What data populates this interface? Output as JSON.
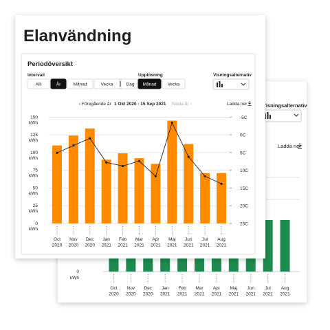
{
  "title": "Elanvändning",
  "panel": {
    "title": "Periodöversikt",
    "interval_label": "Intervall",
    "interval_options": [
      "Allt",
      "År",
      "Månad",
      "Vecka",
      "Dag"
    ],
    "interval_active": 1,
    "resolution_label": "Upplösning",
    "resolution_options": [
      "Månad",
      "Vecka"
    ],
    "resolution_active": 0,
    "view_label": "Visningsalternativ",
    "prev": "‹ Föregående år",
    "period": "1 Okt 2020 - 15 Sep 2021",
    "next": "Nästa år ›",
    "download": "Ladda ner"
  },
  "chart_data": {
    "type": "bar",
    "categories": [
      "Oct 2020",
      "Nov 2020",
      "Dec 2020",
      "Jan 2021",
      "Feb 2021",
      "Mar 2021",
      "Apr 2021",
      "Maj 2021",
      "Jun 2021",
      "Jul 2021",
      "Aug 2021"
    ],
    "series": [
      {
        "type": "bar",
        "color": "#ff8a00",
        "values": [
          110,
          124,
          134,
          90,
          99,
          92,
          84,
          145,
          112,
          71,
          71
        ]
      },
      {
        "type": "line",
        "axis": "y2",
        "color": "#222222",
        "values": [
          5.1,
          3,
          1,
          7.8,
          8.8,
          7.4,
          11.7,
          -3.4,
          6.2,
          11.7,
          13.8
        ]
      }
    ],
    "ylim": [
      0,
      160
    ],
    "yticks": [
      0,
      25,
      50,
      75,
      100,
      125,
      150
    ],
    "y_unit": "kWh",
    "y2lim": [
      25,
      -7
    ],
    "y2ticks": [
      {
        "value": -5,
        "label": "-5C"
      },
      {
        "value": 0,
        "label": "0C"
      },
      {
        "value": 5,
        "label": "5C"
      },
      {
        "value": 10,
        "label": "10C"
      },
      {
        "value": 15,
        "label": "15C"
      },
      {
        "value": 20,
        "label": "20C"
      },
      {
        "value": 25,
        "label": "25C"
      }
    ],
    "grid": true
  },
  "back": {
    "view_label": "Visningsalternativ",
    "download": "Ladda ner",
    "y_tick": 0,
    "y_unit": "kWh",
    "categories": [
      "Oct 2020",
      "Nov 2020",
      "Dec 2020",
      "Jan 2021",
      "Feb 2021",
      "Mar 2021",
      "Apr 2021",
      "Maj 2021",
      "Jun 2021",
      "Jul 2021",
      "Aug 2021"
    ]
  }
}
